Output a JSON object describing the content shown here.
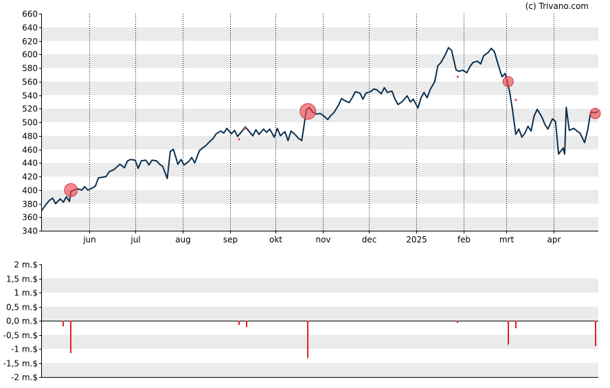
{
  "credit": "(c) Trivano.com",
  "colors": {
    "price_line": "#0b2f4f",
    "band": "#ebebeb",
    "event_circle": "#f04a50",
    "event_outline": "#c83a3f",
    "volume_bar": "#e0202a",
    "axis": "#000000",
    "grid": "#000000"
  },
  "chart_data": [
    {
      "type": "line",
      "grid": "vertical dotted lines at month ticks, alternating horizontal gray bands",
      "ylim": [
        340,
        660
      ],
      "y_ticks": [
        340,
        360,
        380,
        400,
        420,
        440,
        460,
        480,
        500,
        520,
        540,
        560,
        580,
        600,
        620,
        640,
        660
      ],
      "x_range": [
        "2024-05-01",
        "2025-04-30"
      ],
      "x_ticks": [
        {
          "date": "2024-06-01",
          "label": "jun"
        },
        {
          "date": "2024-07-01",
          "label": "jul"
        },
        {
          "date": "2024-08-01",
          "label": "aug"
        },
        {
          "date": "2024-09-01",
          "label": "sep"
        },
        {
          "date": "2024-10-01",
          "label": "okt"
        },
        {
          "date": "2024-11-01",
          "label": "nov"
        },
        {
          "date": "2024-12-01",
          "label": "dec"
        },
        {
          "date": "2025-01-01",
          "label": "2025"
        },
        {
          "date": "2025-02-01",
          "label": "feb"
        },
        {
          "date": "2025-03-01",
          "label": "mrt"
        },
        {
          "date": "2025-04-01",
          "label": "apr"
        }
      ],
      "series": [
        {
          "points": [
            [
              "2024-05-01",
              370
            ],
            [
              "2024-05-03",
              377
            ],
            [
              "2024-05-06",
              385
            ],
            [
              "2024-05-08",
              388
            ],
            [
              "2024-05-10",
              380
            ],
            [
              "2024-05-13",
              387
            ],
            [
              "2024-05-15",
              382
            ],
            [
              "2024-05-17",
              390
            ],
            [
              "2024-05-19",
              383
            ],
            [
              "2024-05-20",
              398
            ],
            [
              "2024-05-22",
              400
            ],
            [
              "2024-05-24",
              402
            ],
            [
              "2024-05-27",
              400
            ],
            [
              "2024-05-29",
              405
            ],
            [
              "2024-05-31",
              400
            ],
            [
              "2024-06-03",
              403
            ],
            [
              "2024-06-05",
              406
            ],
            [
              "2024-06-07",
              418
            ],
            [
              "2024-06-10",
              419
            ],
            [
              "2024-06-12",
              420
            ],
            [
              "2024-06-14",
              427
            ],
            [
              "2024-06-17",
              430
            ],
            [
              "2024-06-19",
              434
            ],
            [
              "2024-06-21",
              438
            ],
            [
              "2024-06-24",
              433
            ],
            [
              "2024-06-26",
              443
            ],
            [
              "2024-06-28",
              445
            ],
            [
              "2024-07-01",
              444
            ],
            [
              "2024-07-03",
              432
            ],
            [
              "2024-07-05",
              443
            ],
            [
              "2024-07-08",
              444
            ],
            [
              "2024-07-10",
              437
            ],
            [
              "2024-07-12",
              444
            ],
            [
              "2024-07-15",
              443
            ],
            [
              "2024-07-17",
              438
            ],
            [
              "2024-07-19",
              435
            ],
            [
              "2024-07-22",
              417
            ],
            [
              "2024-07-24",
              457
            ],
            [
              "2024-07-26",
              460
            ],
            [
              "2024-07-29",
              438
            ],
            [
              "2024-07-31",
              445
            ],
            [
              "2024-08-02",
              437
            ],
            [
              "2024-08-05",
              442
            ],
            [
              "2024-08-07",
              448
            ],
            [
              "2024-08-09",
              440
            ],
            [
              "2024-08-12",
              458
            ],
            [
              "2024-08-14",
              462
            ],
            [
              "2024-08-16",
              465
            ],
            [
              "2024-08-19",
              472
            ],
            [
              "2024-08-21",
              476
            ],
            [
              "2024-08-23",
              483
            ],
            [
              "2024-08-26",
              487
            ],
            [
              "2024-08-28",
              484
            ],
            [
              "2024-08-30",
              491
            ],
            [
              "2024-09-02",
              483
            ],
            [
              "2024-09-04",
              488
            ],
            [
              "2024-09-06",
              479
            ],
            [
              "2024-09-09",
              487
            ],
            [
              "2024-09-11",
              493
            ],
            [
              "2024-09-13",
              488
            ],
            [
              "2024-09-16",
              480
            ],
            [
              "2024-09-18",
              489
            ],
            [
              "2024-09-20",
              482
            ],
            [
              "2024-09-23",
              490
            ],
            [
              "2024-09-25",
              485
            ],
            [
              "2024-09-27",
              490
            ],
            [
              "2024-09-30",
              478
            ],
            [
              "2024-10-02",
              491
            ],
            [
              "2024-10-04",
              480
            ],
            [
              "2024-10-07",
              486
            ],
            [
              "2024-10-09",
              473
            ],
            [
              "2024-10-11",
              487
            ],
            [
              "2024-10-14",
              481
            ],
            [
              "2024-10-16",
              476
            ],
            [
              "2024-10-18",
              473
            ],
            [
              "2024-10-21",
              518
            ],
            [
              "2024-10-23",
              522
            ],
            [
              "2024-10-25",
              515
            ],
            [
              "2024-10-28",
              512
            ],
            [
              "2024-10-30",
              513
            ],
            [
              "2024-11-01",
              510
            ],
            [
              "2024-11-04",
              504
            ],
            [
              "2024-11-06",
              510
            ],
            [
              "2024-11-08",
              514
            ],
            [
              "2024-11-11",
              525
            ],
            [
              "2024-11-13",
              535
            ],
            [
              "2024-11-15",
              532
            ],
            [
              "2024-11-18",
              529
            ],
            [
              "2024-11-20",
              536
            ],
            [
              "2024-11-22",
              545
            ],
            [
              "2024-11-25",
              543
            ],
            [
              "2024-11-27",
              534
            ],
            [
              "2024-11-29",
              543
            ],
            [
              "2024-12-02",
              545
            ],
            [
              "2024-12-04",
              549
            ],
            [
              "2024-12-06",
              548
            ],
            [
              "2024-12-09",
              542
            ],
            [
              "2024-12-11",
              551
            ],
            [
              "2024-12-13",
              544
            ],
            [
              "2024-12-16",
              546
            ],
            [
              "2024-12-18",
              534
            ],
            [
              "2024-12-20",
              526
            ],
            [
              "2024-12-23",
              531
            ],
            [
              "2024-12-26",
              539
            ],
            [
              "2024-12-28",
              530
            ],
            [
              "2024-12-30",
              534
            ],
            [
              "2025-01-02",
              521
            ],
            [
              "2025-01-04",
              536
            ],
            [
              "2025-01-06",
              544
            ],
            [
              "2025-01-08",
              536
            ],
            [
              "2025-01-10",
              548
            ],
            [
              "2025-01-13",
              560
            ],
            [
              "2025-01-15",
              583
            ],
            [
              "2025-01-17",
              588
            ],
            [
              "2025-01-20",
              600
            ],
            [
              "2025-01-22",
              610
            ],
            [
              "2025-01-24",
              606
            ],
            [
              "2025-01-27",
              577
            ],
            [
              "2025-01-29",
              575
            ],
            [
              "2025-01-31",
              577
            ],
            [
              "2025-02-03",
              573
            ],
            [
              "2025-02-05",
              582
            ],
            [
              "2025-02-07",
              588
            ],
            [
              "2025-02-10",
              590
            ],
            [
              "2025-02-12",
              586
            ],
            [
              "2025-02-14",
              598
            ],
            [
              "2025-02-17",
              603
            ],
            [
              "2025-02-19",
              609
            ],
            [
              "2025-02-21",
              604
            ],
            [
              "2025-02-24",
              581
            ],
            [
              "2025-02-26",
              567
            ],
            [
              "2025-02-28",
              572
            ],
            [
              "2025-03-03",
              545
            ],
            [
              "2025-03-05",
              516
            ],
            [
              "2025-03-07",
              482
            ],
            [
              "2025-03-09",
              490
            ],
            [
              "2025-03-11",
              478
            ],
            [
              "2025-03-13",
              484
            ],
            [
              "2025-03-15",
              494
            ],
            [
              "2025-03-17",
              487
            ],
            [
              "2025-03-19",
              509
            ],
            [
              "2025-03-21",
              519
            ],
            [
              "2025-03-24",
              508
            ],
            [
              "2025-03-26",
              497
            ],
            [
              "2025-03-28",
              490
            ],
            [
              "2025-03-31",
              505
            ],
            [
              "2025-04-02",
              501
            ],
            [
              "2025-04-04",
              453
            ],
            [
              "2025-04-07",
              462
            ],
            [
              "2025-04-08",
              453
            ],
            [
              "2025-04-09",
              522
            ],
            [
              "2025-04-11",
              488
            ],
            [
              "2025-04-14",
              491
            ],
            [
              "2025-04-16",
              487
            ],
            [
              "2025-04-18",
              484
            ],
            [
              "2025-04-21",
              470
            ],
            [
              "2025-04-23",
              488
            ],
            [
              "2025-04-25",
              515
            ],
            [
              "2025-04-28",
              514
            ],
            [
              "2025-04-30",
              516
            ]
          ]
        }
      ],
      "event_markers": [
        {
          "date": "2024-05-20",
          "value": 400,
          "size": "medium"
        },
        {
          "date": "2024-09-07",
          "value": 475,
          "size": "dot"
        },
        {
          "date": "2024-09-11",
          "value": 491,
          "size": "dot"
        },
        {
          "date": "2024-10-22",
          "value": 516,
          "size": "large"
        },
        {
          "date": "2025-01-28",
          "value": 567,
          "size": "dot"
        },
        {
          "date": "2025-03-02",
          "value": 560,
          "size": "small"
        },
        {
          "date": "2025-03-07",
          "value": 533,
          "size": "dot"
        },
        {
          "date": "2025-04-28",
          "value": 513,
          "size": "small"
        }
      ]
    },
    {
      "type": "bar",
      "grid": "alternating horizontal gray bands",
      "ylim": [
        -2000000,
        2000000
      ],
      "y_ticks": [
        {
          "value": 2000000,
          "label": "2 m.$"
        },
        {
          "value": 1500000,
          "label": "1,5 m.$"
        },
        {
          "value": 1000000,
          "label": "1 m.$"
        },
        {
          "value": 500000,
          "label": "0,5 m.$"
        },
        {
          "value": 0,
          "label": "0,0 m.$"
        },
        {
          "value": -500000,
          "label": "-0,5 m.$"
        },
        {
          "value": -1000000,
          "label": "-1 m.$"
        },
        {
          "value": -1500000,
          "label": "-1,5 m.$"
        },
        {
          "value": -2000000,
          "label": "-2 m.$"
        }
      ],
      "x_range": [
        "2024-05-01",
        "2025-04-30"
      ],
      "bars": [
        {
          "date": "2024-05-15",
          "value": -200000
        },
        {
          "date": "2024-05-20",
          "value": -1150000
        },
        {
          "date": "2024-09-07",
          "value": -150000
        },
        {
          "date": "2024-09-12",
          "value": -230000
        },
        {
          "date": "2024-10-22",
          "value": -1330000
        },
        {
          "date": "2025-01-28",
          "value": -80000
        },
        {
          "date": "2025-03-02",
          "value": -850000
        },
        {
          "date": "2025-03-07",
          "value": -270000
        },
        {
          "date": "2025-04-28",
          "value": -900000
        }
      ]
    }
  ]
}
